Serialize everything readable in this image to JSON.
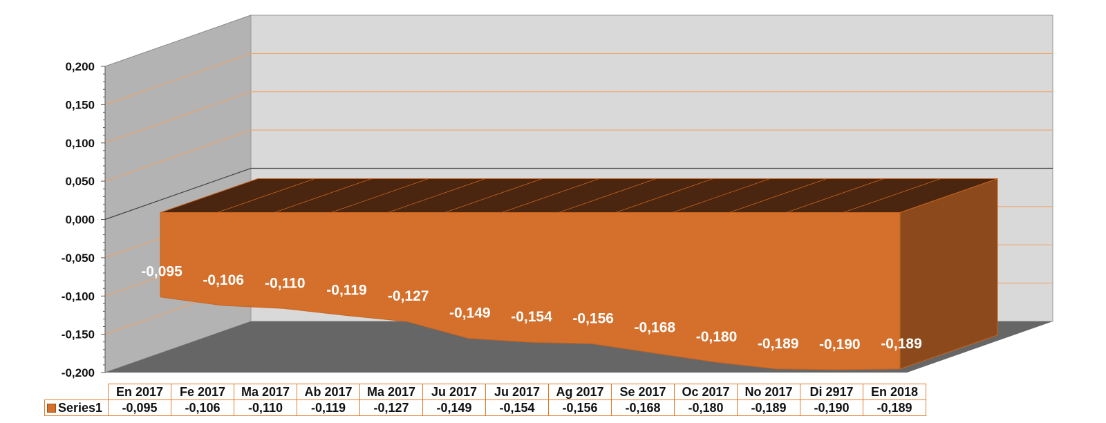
{
  "chart_data": {
    "type": "area",
    "categories": [
      "En 2017",
      "Fe 2017",
      "Ma 2017",
      "Ab 2017",
      "Ma 2017",
      "Ju  2017",
      "Ju 2017",
      "Ag 2017",
      "Se  2017",
      "Oc 2017",
      "No  2017",
      "Di 2917",
      "En 2018"
    ],
    "series": [
      {
        "name": "Series1",
        "values": [
          -0.095,
          -0.106,
          -0.11,
          -0.119,
          -0.127,
          -0.149,
          -0.154,
          -0.156,
          -0.168,
          -0.18,
          -0.189,
          -0.19,
          -0.189
        ],
        "labels": [
          "-0,095",
          "-0,106",
          "-0,110",
          "-0,119",
          "-0,127",
          "-0,149",
          "-0,154",
          "-0,156",
          "-0,168",
          "-0,180",
          "-0,189",
          "-0,190",
          "-0,189"
        ],
        "color": "#d4702c"
      }
    ],
    "ylim": [
      -0.2,
      0.2
    ],
    "yticks": [
      "0,200",
      "0,150",
      "0,100",
      "0,050",
      "0,000",
      "-0,050",
      "-0,100",
      "-0,150",
      "-0,200"
    ],
    "grid": true,
    "legend": "data-table",
    "colors": {
      "area_front": "#d4702c",
      "area_top": "#4a2610",
      "area_side": "#8c4a1c",
      "gridline": "#f0a060",
      "back_wall": "#d9d9d9",
      "side_wall": "#b3b3b3",
      "floor": "#666666"
    }
  }
}
